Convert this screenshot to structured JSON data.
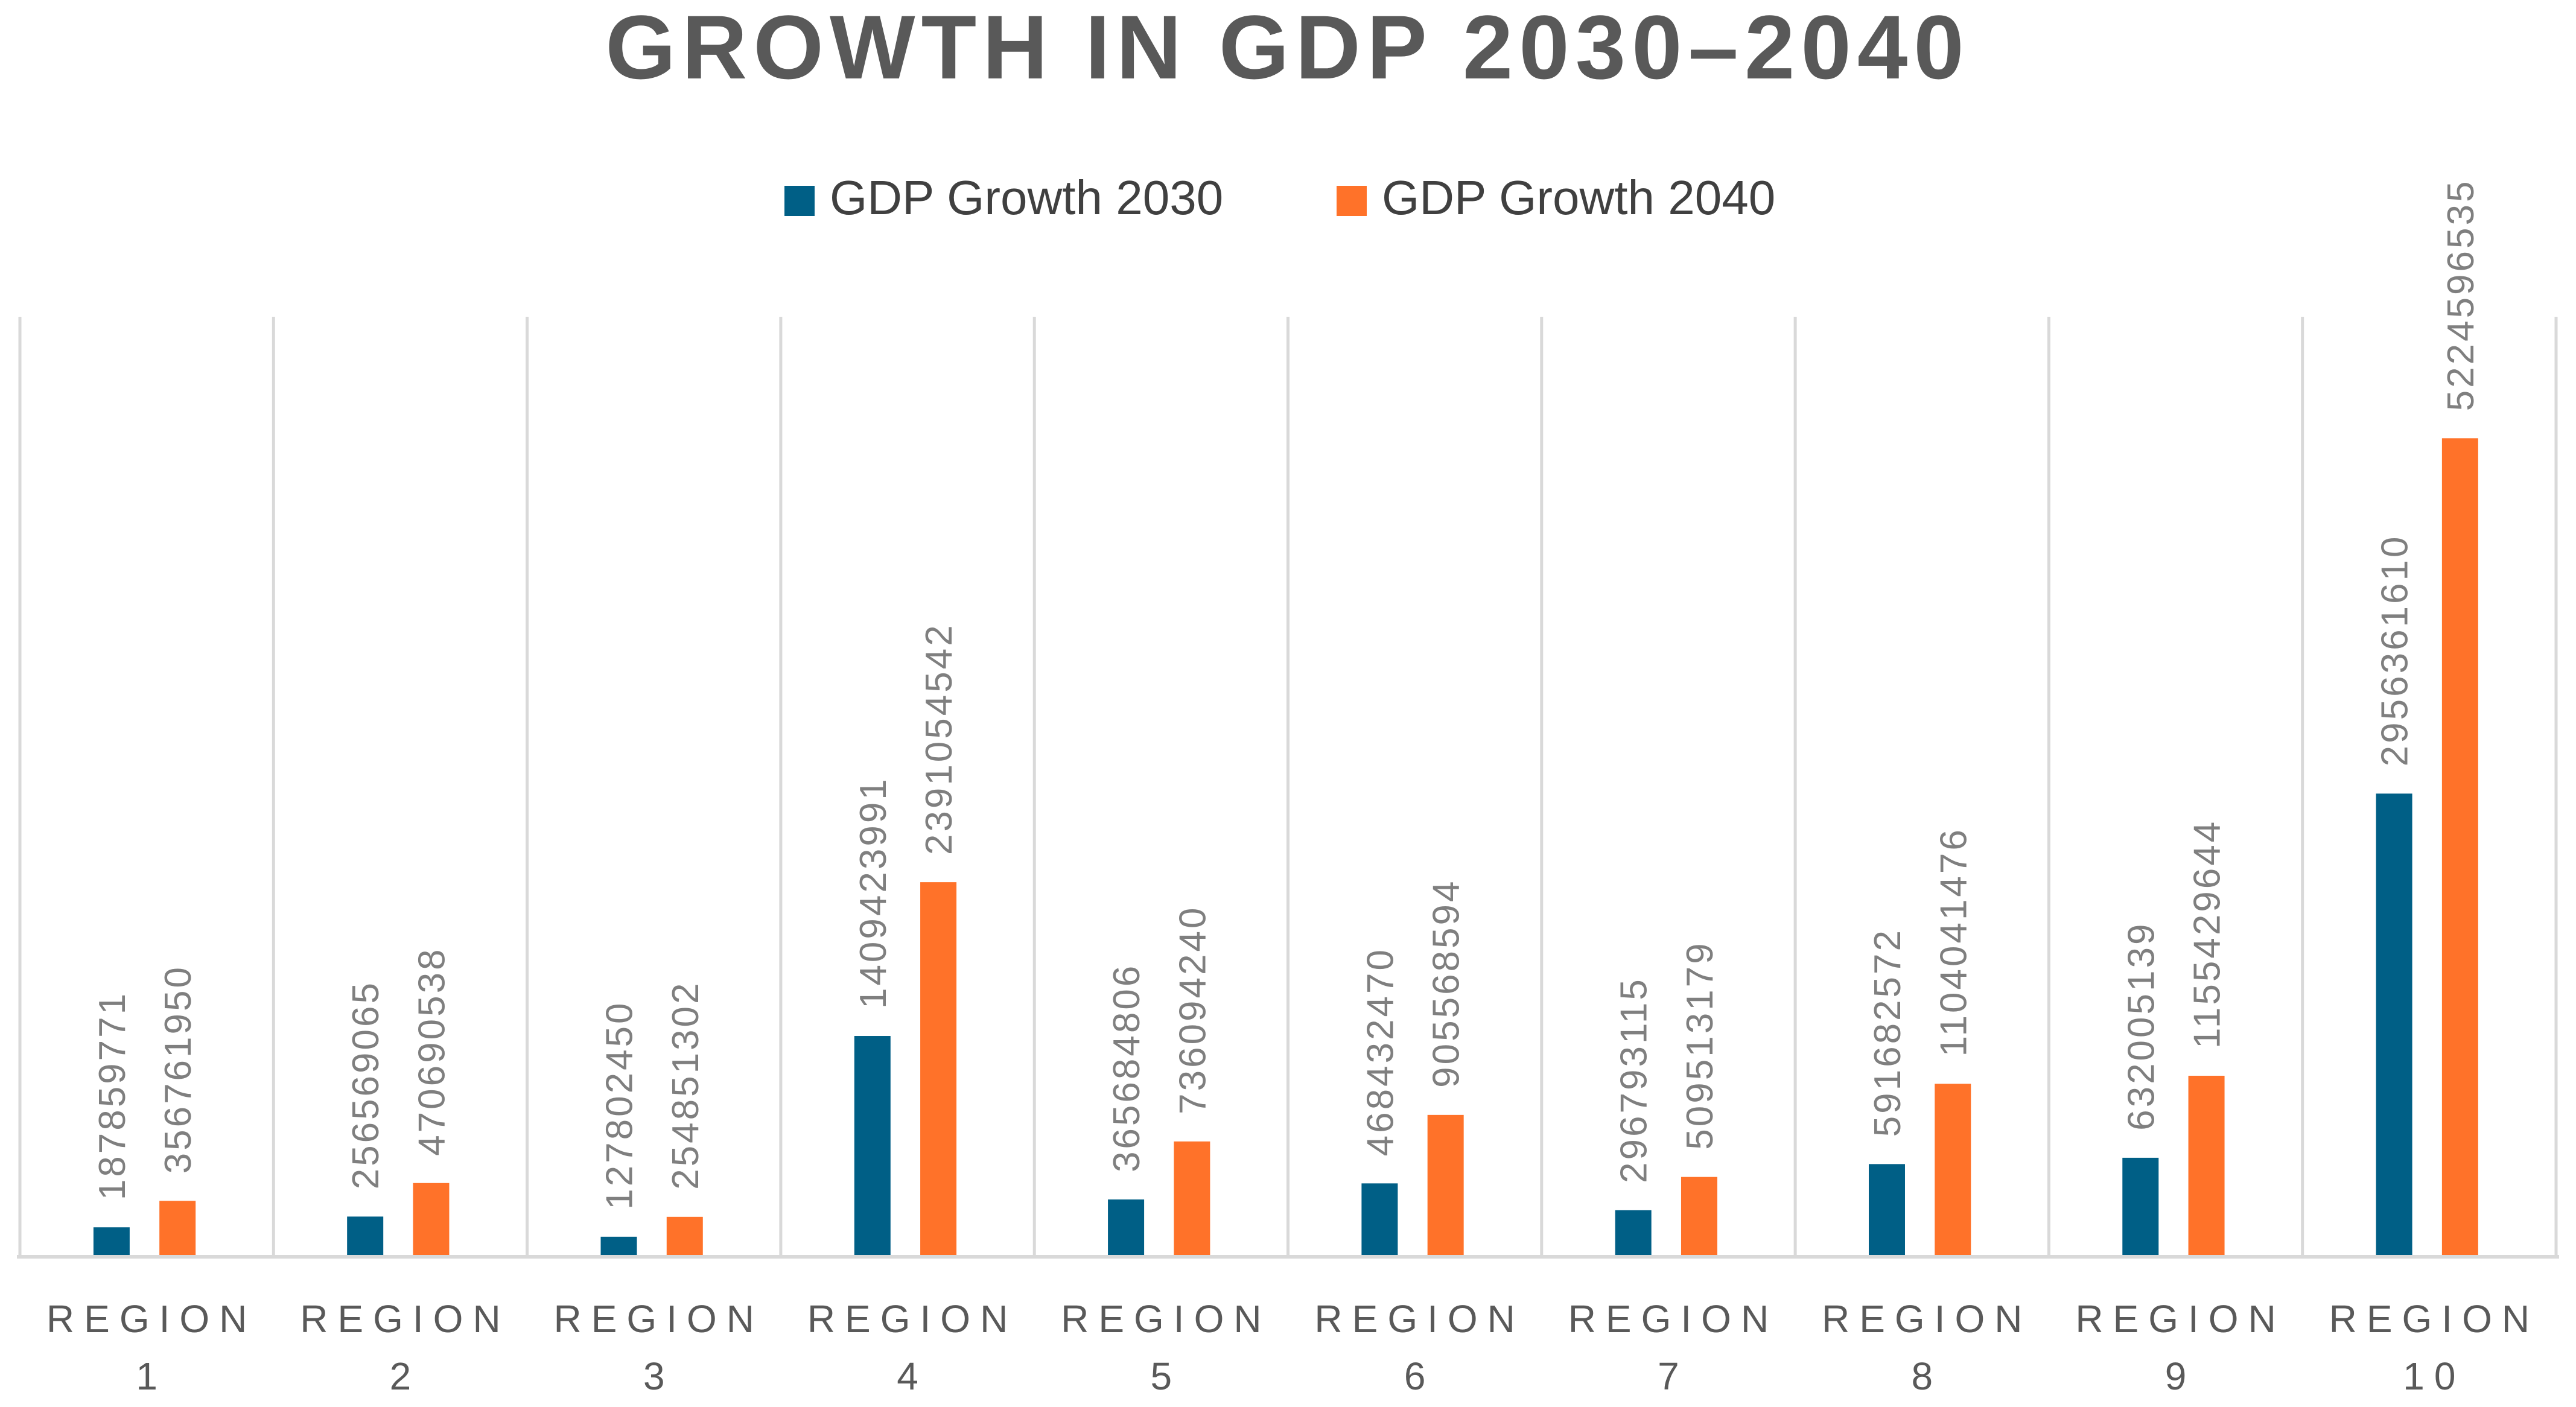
{
  "chart_data": {
    "type": "bar",
    "title": "GROWTH IN GDP 2030–2040",
    "xlabel": "",
    "ylabel": "",
    "ylim": [
      0,
      6000000000
    ],
    "grid": "vertical category separators",
    "legend_position": "top-center",
    "categories": [
      [
        "REGION",
        "1"
      ],
      [
        "REGION",
        "2"
      ],
      [
        "REGION",
        "3"
      ],
      [
        "REGION",
        "4"
      ],
      [
        "REGION",
        "5"
      ],
      [
        "REGION",
        "6"
      ],
      [
        "REGION",
        "7"
      ],
      [
        "REGION",
        "8"
      ],
      [
        "REGION",
        "9"
      ],
      [
        "REGION",
        "10"
      ]
    ],
    "series": [
      {
        "name": "GDP Growth 2030",
        "color": "#005f86",
        "values": [
          187859771,
          256569065,
          127802450,
          1409423991,
          365684806,
          468432470,
          296793115,
          591682572,
          632005139,
          2956361610
        ],
        "labels": [
          "187859771",
          "256569065",
          "127802450",
          "1409423991",
          "365684806",
          "468432470",
          "296793115",
          "591682572",
          "632005139",
          "2956361610"
        ]
      },
      {
        "name": "GDP Growth 2040",
        "color": "#ff7229",
        "values": [
          356761950,
          470690538,
          254851302,
          2391054542,
          736094240,
          905568594,
          509513179,
          1104041476,
          1155429644,
          5224596535
        ],
        "labels": [
          "356761950",
          "470690538",
          "254851302",
          "2391054542",
          "736094240",
          "905568594",
          "509513179",
          "1104041476",
          "1155429644",
          "5224596535"
        ]
      }
    ]
  }
}
